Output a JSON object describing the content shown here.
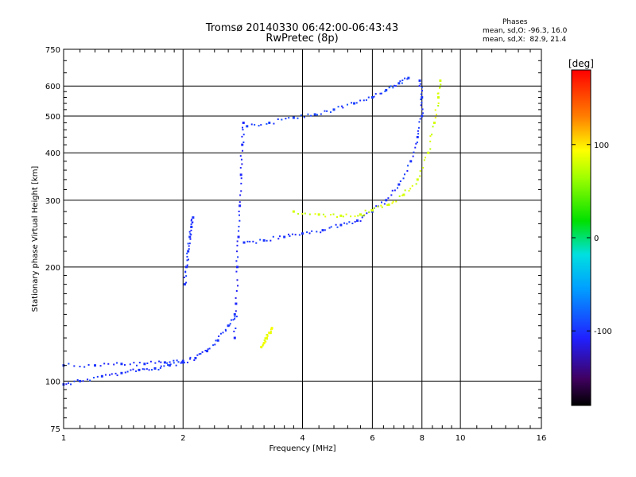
{
  "title_line1": "Tromsø 20140330 06:42:00-06:43:43",
  "title_line2": "RwPretec (8p)",
  "phase_box": {
    "heading": "Phases",
    "line_o": "mean, sd,O: -96.3, 16.0",
    "line_x": "mean, sd,X:  82.9, 21.4"
  },
  "colorbar": {
    "unit_label": "[deg]",
    "range": [
      -180,
      180
    ],
    "tick_labels": [
      "100",
      "0",
      "-100"
    ],
    "tick_values": [
      100,
      0,
      -100
    ]
  },
  "chart_data": {
    "type": "scatter",
    "title": "Tromsø 20140330 06:42:00-06:43:43",
    "subtitle": "RwPretec (8p)",
    "xlabel": "Frequency [MHz]",
    "ylabel": "Stationary phase Virtual Height [km]",
    "x_scale": "log",
    "y_scale": "log",
    "xlim": [
      1,
      16
    ],
    "ylim": [
      75,
      750
    ],
    "x_ticks": [
      1,
      2,
      4,
      6,
      8,
      10,
      16
    ],
    "x_tick_labels": [
      "1",
      "2",
      "4",
      "6",
      "8",
      "10",
      "16"
    ],
    "y_ticks": [
      75,
      100,
      200,
      300,
      400,
      500,
      600,
      750
    ],
    "y_tick_labels": [
      "75",
      "100",
      "200",
      "300",
      "400",
      "500",
      "600",
      "750"
    ],
    "grid": true,
    "color_scale": "phase [deg], -180 to 180, rainbow",
    "traces": [
      {
        "desc": "low-height echoes",
        "phase": -100,
        "x": [
          1.0,
          1.1,
          1.25,
          1.4,
          1.55,
          1.7,
          1.85,
          2.0,
          2.15,
          2.3,
          2.45,
          2.6,
          2.7
        ],
        "y": [
          98,
          100,
          103,
          105,
          107,
          108,
          110,
          112,
          115,
          120,
          128,
          140,
          150
        ]
      },
      {
        "desc": "second low trace",
        "phase": -100,
        "x": [
          1.0,
          1.2,
          1.4,
          1.6,
          1.8,
          2.0
        ],
        "y": [
          110,
          110,
          111,
          111,
          112,
          113
        ]
      },
      {
        "desc": "E-region cusp near 2 MHz",
        "phase": -100,
        "x": [
          2.02,
          2.04,
          2.06,
          2.08,
          2.1,
          2.12
        ],
        "y": [
          180,
          200,
          220,
          240,
          255,
          270
        ]
      },
      {
        "desc": "F trace near 2.75 MHz",
        "phase": -105,
        "x": [
          2.7,
          2.72,
          2.74,
          2.76,
          2.78,
          2.8,
          2.82,
          2.84
        ],
        "y": [
          130,
          160,
          200,
          240,
          290,
          350,
          420,
          480
        ]
      },
      {
        "desc": "O-mode F trace",
        "phase": -100,
        "x": [
          2.85,
          3.2,
          3.6,
          4.0,
          4.5,
          5.0,
          5.5,
          6.0,
          6.5,
          7.0,
          7.5,
          7.8,
          8.0,
          8.0,
          7.9
        ],
        "y": [
          232,
          235,
          240,
          245,
          250,
          258,
          265,
          280,
          300,
          330,
          380,
          440,
          500,
          560,
          620
        ]
      },
      {
        "desc": "upper O-mode trace",
        "phase": -95,
        "x": [
          2.9,
          3.3,
          3.8,
          4.3,
          4.8,
          5.4,
          6.0,
          6.5,
          7.0,
          7.4
        ],
        "y": [
          470,
          480,
          495,
          505,
          520,
          540,
          560,
          585,
          610,
          630
        ]
      },
      {
        "desc": "X-mode F trace",
        "phase": 80,
        "x": [
          3.8,
          4.4,
          5.0,
          5.6,
          6.0,
          6.6,
          7.2,
          7.8,
          8.3,
          8.6,
          8.8,
          8.9
        ],
        "y": [
          280,
          275,
          273,
          275,
          282,
          292,
          310,
          340,
          400,
          480,
          560,
          620
        ]
      },
      {
        "desc": "small yellow patch",
        "phase": 90,
        "x": [
          3.15,
          3.2,
          3.25,
          3.3,
          3.35
        ],
        "y": [
          123,
          126,
          130,
          134,
          138
        ]
      }
    ]
  }
}
